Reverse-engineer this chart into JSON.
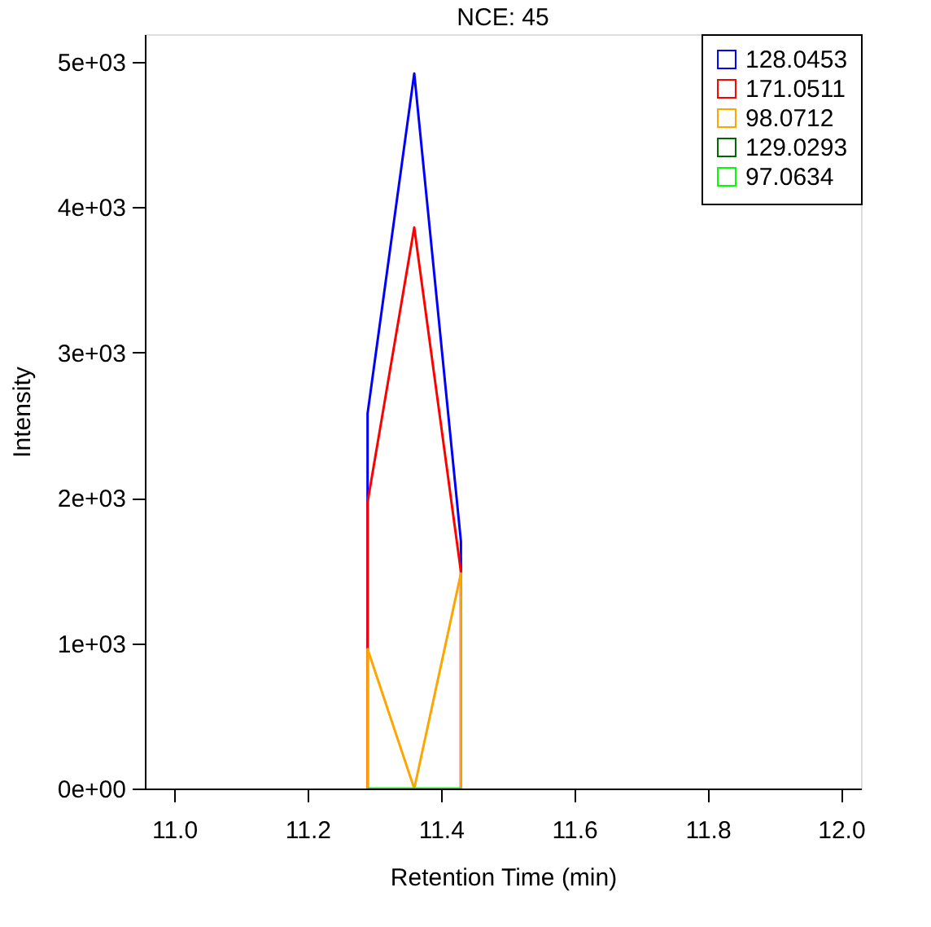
{
  "chart_data": {
    "type": "line",
    "title": "NCE:  45",
    "xlabel": "Retention Time (min)",
    "ylabel": "Intensity",
    "xlim": [
      10.956,
      12.03
    ],
    "xticks": [
      {
        "value": 11,
        "label": "11.0"
      },
      {
        "value": 11.2,
        "label": "11.2"
      },
      {
        "value": 11.4,
        "label": "11.4"
      },
      {
        "value": 11.6,
        "label": "11.6"
      },
      {
        "value": 11.8,
        "label": "11.8"
      },
      {
        "value": 12,
        "label": "12.0"
      }
    ],
    "ylim": [
      0,
      5190
    ],
    "yticks": [
      {
        "value": 0,
        "label": "0e+00"
      },
      {
        "value": 1000,
        "label": "1e+03"
      },
      {
        "value": 2000,
        "label": "2e+03"
      },
      {
        "value": 3000,
        "label": "3e+03"
      },
      {
        "value": 4000,
        "label": "4e+03"
      },
      {
        "value": 5000,
        "label": "5e+03"
      }
    ],
    "x": [
      11.29,
      11.29,
      11.36,
      11.43,
      11.43
    ],
    "series": [
      {
        "name": "128.0453",
        "color": "#0000ff",
        "values": [
          0,
          2580,
          4920,
          1700,
          0
        ]
      },
      {
        "name": "171.0511",
        "color": "#ff0000",
        "values": [
          0,
          1970,
          3860,
          1490,
          0
        ]
      },
      {
        "name": "98.0712",
        "color": "#ffa500",
        "values": [
          0,
          960,
          0,
          1480,
          0
        ]
      },
      {
        "name": "129.0293",
        "color": "#006400",
        "values": [
          null,
          null,
          null,
          null,
          null
        ]
      },
      {
        "name": "97.0634",
        "color": "#00ff00",
        "values": [
          0,
          0,
          0,
          0,
          0
        ]
      }
    ],
    "legend": "top right",
    "grid": false,
    "marker": "none",
    "line_style": "solid"
  }
}
